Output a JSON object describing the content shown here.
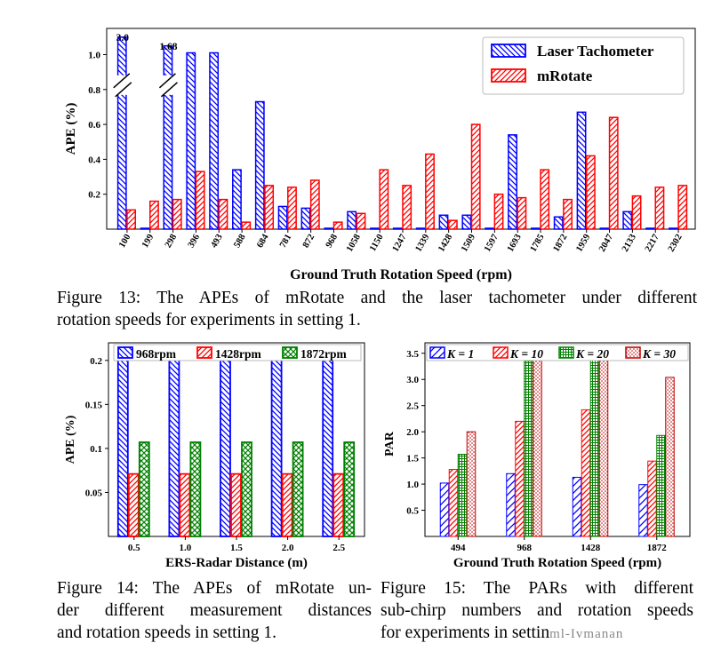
{
  "figure13": {
    "caption_lines": [
      "Figure 13: The APEs of mRotate and the laser tachometer under different",
      "rotation speeds for experiments in setting 1."
    ]
  },
  "figure14": {
    "caption_lines": [
      "Figure 14: The APEs of mRotate un-",
      "der different measurement distances",
      "and rotation speeds in setting 1."
    ]
  },
  "figure15": {
    "caption_lines": [
      "Figure 15: The PARs with different",
      "sub-chirp numbers and rotation speeds",
      "for experiments in settin"
    ],
    "watermark": "ml-Ivmanan"
  },
  "colors": {
    "blue": "#0000ff",
    "red": "#ff0000",
    "green": "#008000",
    "darkred": "#c00000"
  },
  "chart_data": [
    {
      "type": "bar",
      "id": "fig13",
      "title": "",
      "xlabel": "Ground Truth Rotation Speed (rpm)",
      "ylabel": "APE (%)",
      "ylim": [
        0,
        1.15
      ],
      "yticks": [
        "0.2",
        "0.4",
        "0.6",
        "0.8",
        "1.0"
      ],
      "ytick_values": [
        0.2,
        0.4,
        0.6,
        0.8,
        1.0
      ],
      "categories": [
        "100",
        "199",
        "298",
        "396",
        "493",
        "588",
        "684",
        "781",
        "872",
        "968",
        "1058",
        "1150",
        "1247",
        "1339",
        "1428",
        "1509",
        "1597",
        "1693",
        "1785",
        "1872",
        "1959",
        "2047",
        "2133",
        "2217",
        "2302"
      ],
      "series": [
        {
          "name": "Laser Tachometer",
          "values": [
            1.1,
            0.005,
            1.05,
            1.01,
            1.01,
            0.34,
            0.73,
            0.13,
            0.12,
            0.005,
            0.1,
            0.005,
            0.005,
            0.005,
            0.08,
            0.08,
            0.005,
            0.54,
            0.005,
            0.07,
            0.67,
            0.005,
            0.1,
            0.005,
            0.005
          ]
        },
        {
          "name": "mRotate",
          "values": [
            0.11,
            0.16,
            0.17,
            0.33,
            0.17,
            0.04,
            0.25,
            0.24,
            0.28,
            0.04,
            0.09,
            0.34,
            0.25,
            0.43,
            0.05,
            0.6,
            0.2,
            0.18,
            0.34,
            0.17,
            0.42,
            0.64,
            0.19,
            0.24,
            0.25
          ]
        }
      ],
      "annotations": [
        "3.0",
        "1.68"
      ],
      "legend_position": "top-right"
    },
    {
      "type": "bar",
      "id": "fig14",
      "xlabel": "ERS-Radar Distance (m)",
      "ylabel": "APE (%)",
      "ylim": [
        0,
        0.22
      ],
      "yticks": [
        "0.05",
        "0.1",
        "0.15",
        "0.2"
      ],
      "ytick_values": [
        0.05,
        0.1,
        0.15,
        0.2
      ],
      "categories": [
        "0.5",
        "1.0",
        "1.5",
        "2.0",
        "2.5"
      ],
      "series": [
        {
          "name": "968rpm",
          "values": [
            0.207,
            0.207,
            0.207,
            0.207,
            0.207
          ]
        },
        {
          "name": "1428rpm",
          "values": [
            0.071,
            0.071,
            0.071,
            0.071,
            0.071
          ]
        },
        {
          "name": "1872rpm",
          "values": [
            0.107,
            0.107,
            0.107,
            0.107,
            0.107
          ]
        }
      ],
      "legend_position": "top"
    },
    {
      "type": "bar",
      "id": "fig15",
      "xlabel": "Ground Truth Rotation Speed (rpm)",
      "ylabel": "PAR",
      "ylim": [
        0,
        3.7
      ],
      "yticks": [
        "0.5",
        "1.0",
        "1.5",
        "2.0",
        "2.5",
        "3.0",
        "3.5"
      ],
      "ytick_values": [
        0.5,
        1.0,
        1.5,
        2.0,
        2.5,
        3.0,
        3.5
      ],
      "categories": [
        "494",
        "968",
        "1428",
        "1872"
      ],
      "series": [
        {
          "name": "K = 1",
          "values": [
            1.02,
            1.2,
            1.13,
            0.99
          ]
        },
        {
          "name": "K = 10",
          "values": [
            1.28,
            2.2,
            2.42,
            1.44
          ]
        },
        {
          "name": "K = 20",
          "values": [
            1.57,
            3.35,
            3.44,
            1.93
          ]
        },
        {
          "name": "K = 30",
          "values": [
            2.0,
            3.47,
            3.52,
            3.04
          ]
        }
      ],
      "legend_position": "top"
    }
  ]
}
